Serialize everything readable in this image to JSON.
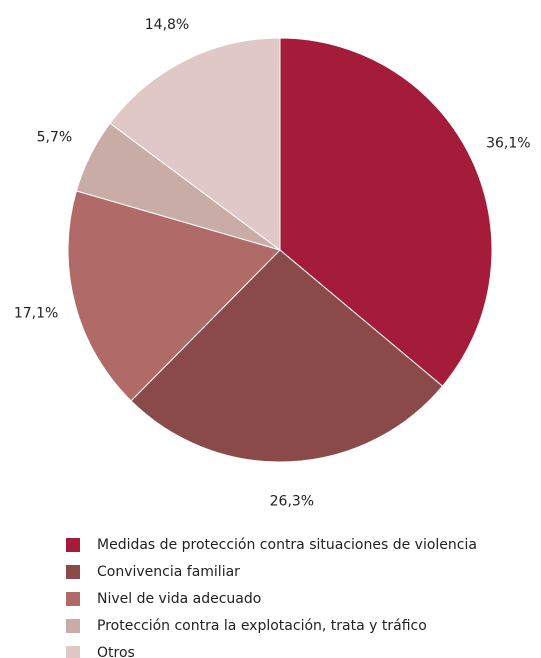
{
  "chart_data": {
    "type": "pie",
    "categories": [
      "Medidas de protección contra situaciones de violencia",
      "Convivencia familiar",
      "Nivel de vida adecuado",
      "Protección contra la explotación, trata y tráfico",
      "Otros"
    ],
    "values": [
      36.1,
      26.3,
      17.1,
      5.7,
      14.8
    ],
    "value_labels": [
      "36,1%",
      "26,3%",
      "17,1%",
      "5,7%",
      "14,8%"
    ],
    "colors": [
      "#a51c3a",
      "#8b4a4a",
      "#b06b68",
      "#c9aca6",
      "#dfc8c6"
    ]
  }
}
